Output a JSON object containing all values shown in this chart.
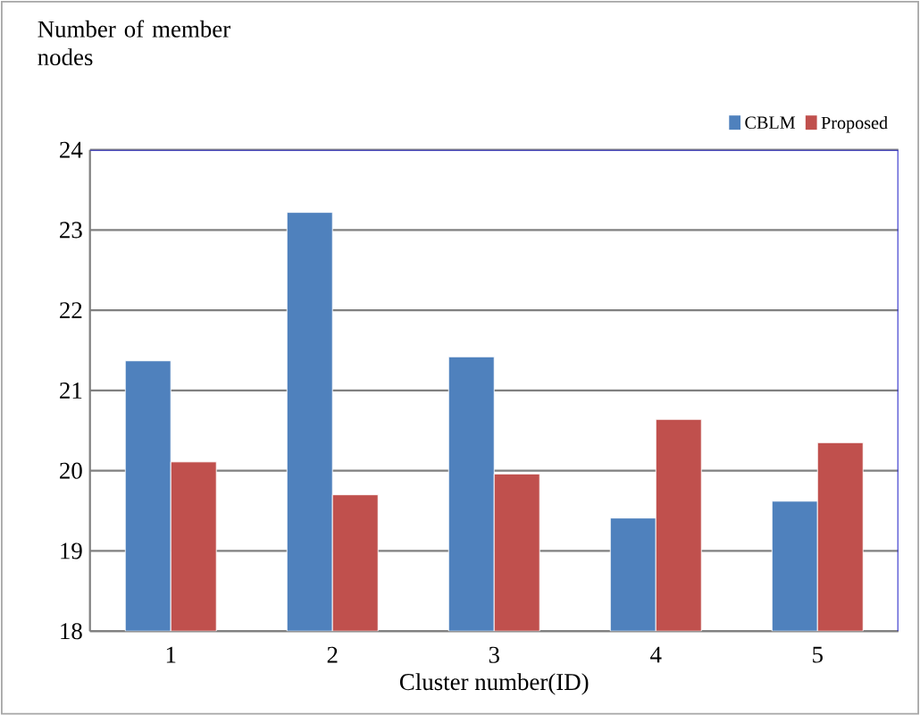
{
  "chart_data": {
    "type": "bar",
    "ylabel": "Number of member nodes",
    "xlabel": "Cluster number(ID)",
    "categories": [
      "1",
      "2",
      "3",
      "4",
      "5"
    ],
    "series": [
      {
        "name": "CBLM",
        "color": "#4f81bd",
        "values": [
          21.37,
          23.22,
          21.42,
          19.41,
          19.62
        ]
      },
      {
        "name": "Proposed",
        "color": "#c0504d",
        "values": [
          20.11,
          19.7,
          19.96,
          20.64,
          20.35
        ]
      }
    ],
    "ylim": [
      18,
      24
    ],
    "yticks": [
      18,
      19,
      20,
      21,
      22,
      23,
      24
    ],
    "grid": "y",
    "legend": "top right"
  }
}
